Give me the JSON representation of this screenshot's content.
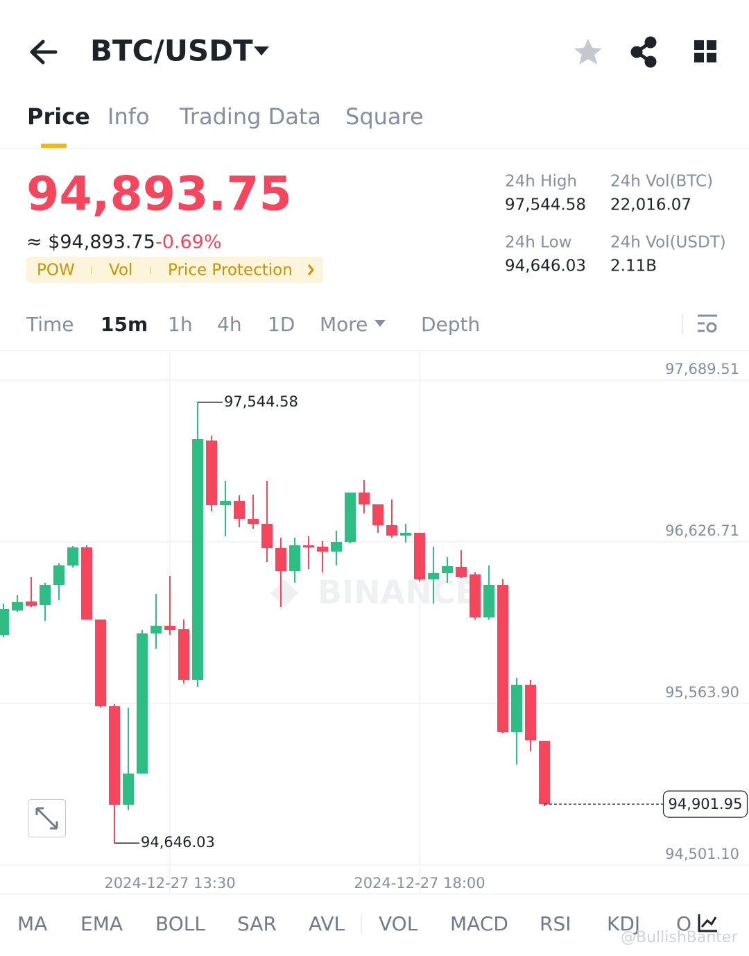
{
  "header": {
    "pair": "BTC/USDT"
  },
  "tabs": [
    "Price",
    "Info",
    "Trading Data",
    "Square"
  ],
  "ticker": {
    "price": "94,893.75",
    "usd_price": "≈ $94,893.75",
    "change": "-0.69%",
    "tags": [
      "POW",
      "Vol",
      "Price Protection"
    ],
    "stats": [
      {
        "label": "24h High",
        "value": "97,544.58"
      },
      {
        "label": "24h Vol(BTC)",
        "value": "22,016.07"
      },
      {
        "label": "24h Low",
        "value": "94,646.03"
      },
      {
        "label": "24h Vol(USDT)",
        "value": "2.11B"
      }
    ]
  },
  "intervals": [
    "Time",
    "15m",
    "1h",
    "4h",
    "1D",
    "More",
    "Depth"
  ],
  "chart_data": {
    "type": "candlestick",
    "watermark": "BINANCE",
    "categories": [
      null,
      null,
      null,
      null,
      null,
      null,
      null,
      null,
      null,
      null,
      null,
      null,
      "2024-12-27 13:30",
      null,
      null,
      null,
      null,
      null,
      null,
      null,
      null,
      null,
      null,
      null,
      null,
      null,
      null,
      null,
      null,
      null,
      "2024-12-27 18:00",
      null,
      null,
      null,
      null,
      null,
      null,
      null,
      null,
      null
    ],
    "open": [
      96015.4,
      96175.1,
      96234.4,
      96211.6,
      96343.8,
      96471.6,
      96590.1,
      96115.8,
      95545.6,
      94897.9,
      95103.3,
      96024.5,
      96074.7,
      96051.9,
      95718.9,
      97292.6,
      96868.4,
      96895.8,
      96777.2,
      96745.2,
      96585.6,
      96435.1,
      96603.8,
      96594.7,
      96562.8,
      96626.6,
      96950.5,
      96873.0,
      96736.1,
      96667.7,
      96685.9,
      96380.3,
      96421.4,
      96462.4,
      96412.3,
      96129.5,
      96343.8,
      95376.8,
      95687.0,
      95317.5
    ],
    "high": [
      96220.7,
      96275.4,
      96394.0,
      96357.5,
      96485.2,
      96599.3,
      96603.8,
      96115.8,
      95559.3,
      95536.5,
      96047.3,
      96284.5,
      96403.1,
      96115.8,
      97544.58,
      97324.5,
      97028.0,
      96932.3,
      96936.8,
      97028.0,
      96654.0,
      96654.0,
      96663.1,
      96631.2,
      96699.6,
      96950.5,
      97032.6,
      96873.0,
      96904.9,
      96745.2,
      96685.9,
      96594.7,
      96526.3,
      96571.9,
      96425.9,
      96471.6,
      96380.3,
      95732.6,
      95718.9,
      95317.5
    ],
    "low": [
      96001.7,
      96165.9,
      96197.9,
      96106.6,
      96243.5,
      96457.9,
      96115.8,
      95536.5,
      94646.03,
      94861.4,
      95103.3,
      95924.2,
      96015.4,
      95696.1,
      95673.3,
      96827.3,
      96663.1,
      96722.4,
      96713.3,
      96494.4,
      96197.9,
      96357.5,
      96448.8,
      96425.9,
      96471.6,
      96617.5,
      96813.7,
      96685.9,
      96654.0,
      96622.1,
      96366.6,
      96220.7,
      96357.5,
      96389.5,
      96115.8,
      96115.8,
      95367.7,
      95162.4,
      95249.1,
      94888.8
    ],
    "close": [
      96184.2,
      96229.8,
      96207.0,
      96343.8,
      96471.6,
      96590.1,
      96115.8,
      95545.6,
      94897.9,
      95103.3,
      96024.5,
      96074.7,
      96047.3,
      95718.9,
      97301.7,
      96868.4,
      96895.8,
      96777.2,
      96745.2,
      96585.6,
      96435.1,
      96603.8,
      96590.1,
      96562.8,
      96626.6,
      96950.5,
      96873.0,
      96736.1,
      96667.7,
      96685.9,
      96380.3,
      96421.4,
      96467.0,
      96394.0,
      96129.5,
      96343.8,
      95376.8,
      95687.0,
      95322.1,
      94901.95
    ],
    "up_color": "#2ebd85",
    "down_color": "#f6465d",
    "ylim": [
      94314.0,
      97871.9
    ],
    "yticks": [
      {
        "value": 94501.1,
        "label": "94,501.10"
      },
      {
        "value": 95563.9,
        "label": "95,563.90"
      },
      {
        "value": 96626.71,
        "label": "96,626.71"
      },
      {
        "value": 97689.51,
        "label": "97,689.51"
      }
    ],
    "grid": true,
    "high_marker": {
      "value": 97544.58,
      "label": "97,544.58"
    },
    "low_marker": {
      "value": 94646.03,
      "label": "94,646.03"
    },
    "last_price": {
      "value": 94901.95,
      "label": "94,901.95"
    }
  },
  "indicators": [
    "MA",
    "EMA",
    "BOLL",
    "SAR",
    "AVL",
    "VOL",
    "MACD",
    "RSI",
    "KDJ",
    "O"
  ],
  "credit": "@BullishBanter"
}
